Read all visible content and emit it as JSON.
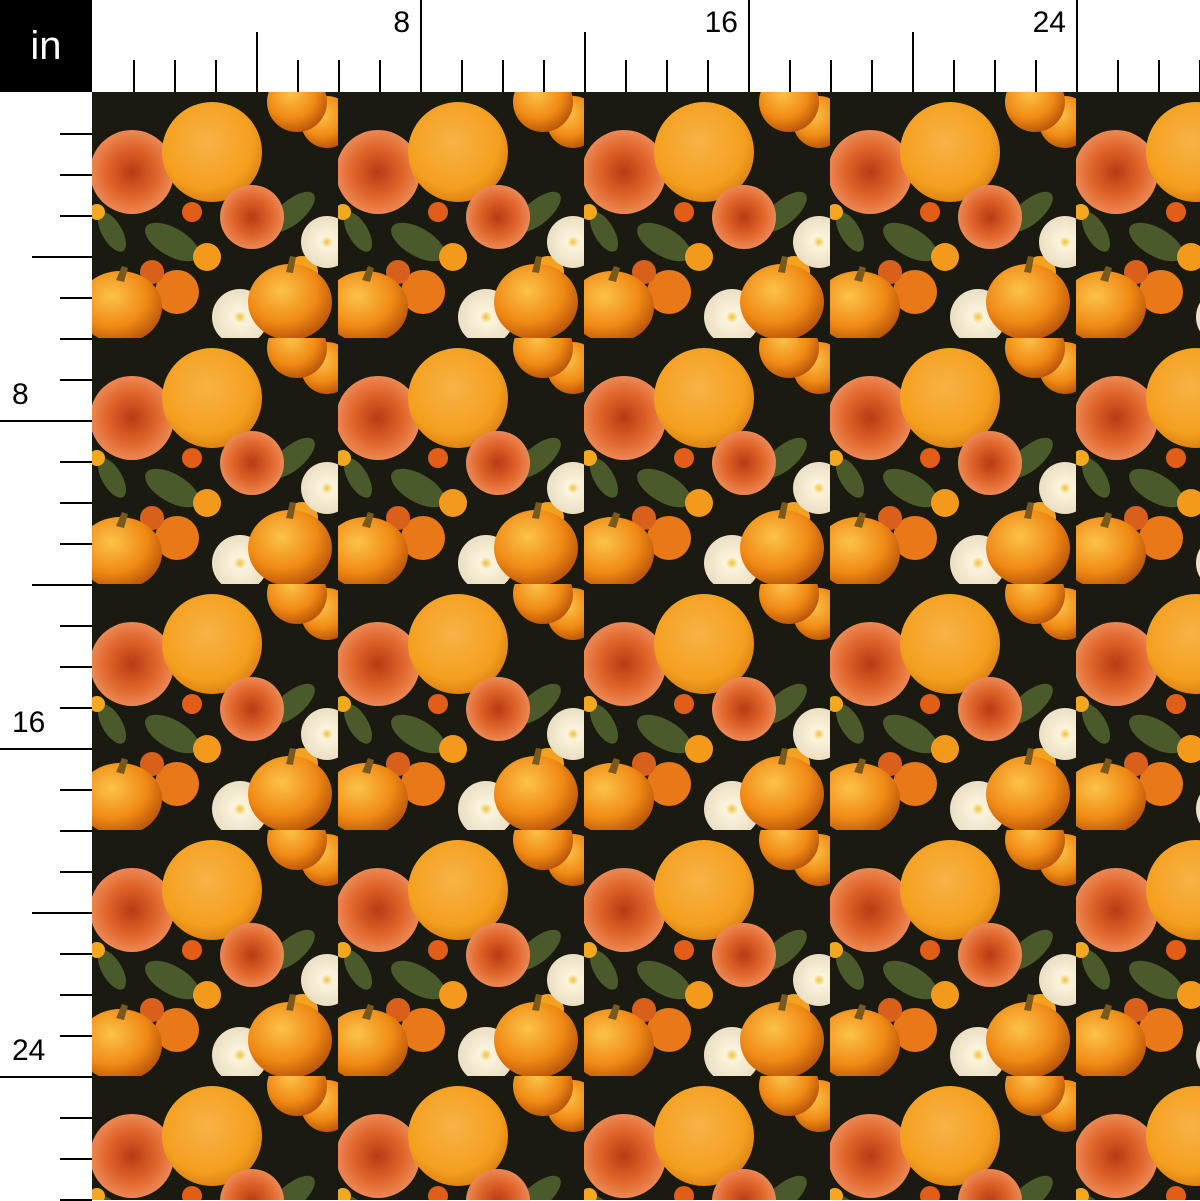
{
  "ruler": {
    "unit": "in",
    "top_labels": [
      "8",
      "16",
      "24"
    ],
    "left_labels": [
      "8",
      "16",
      "24"
    ]
  },
  "fabric": {
    "motif": "embroidered autumn pumpkins and flowers",
    "colors": {
      "background": "#1b1a10",
      "pumpkin": "#f08a14",
      "flower_orange": "#e0652a",
      "flower_yellow": "#f4a81f",
      "daisy": "#f4efe2",
      "leaf": "#4b5a2a"
    }
  }
}
